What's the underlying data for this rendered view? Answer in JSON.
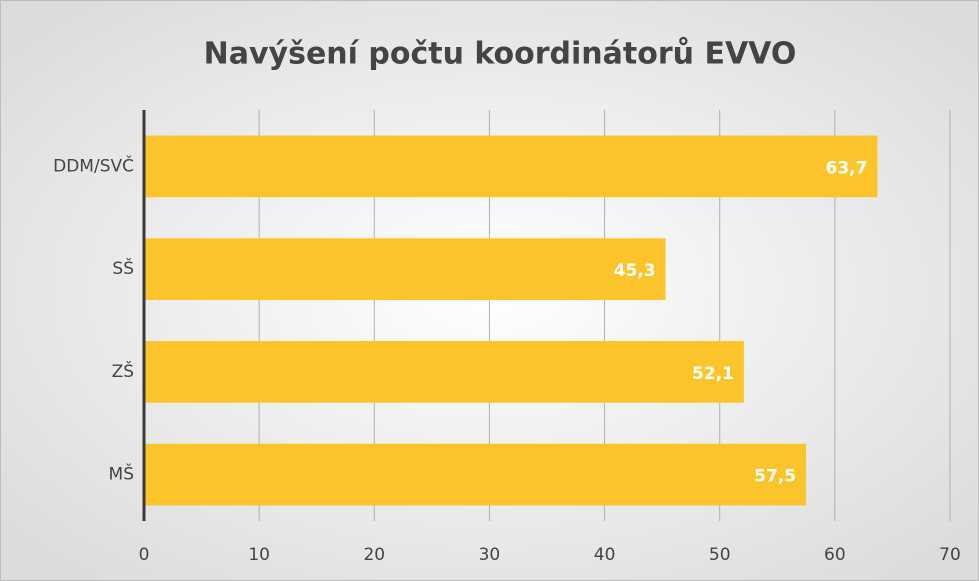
{
  "chart_data": {
    "type": "bar",
    "orientation": "horizontal",
    "title": "Navýšení počtu koordinátorů EVVO",
    "categories": [
      "DDM/SVČ",
      "SŠ",
      "ZŠ",
      "MŠ"
    ],
    "values": [
      63.7,
      45.3,
      52.1,
      57.5
    ],
    "value_labels": [
      "63,7",
      "45,3",
      "52,1",
      "57,5"
    ],
    "color": "#fcc42b",
    "xlim": [
      0,
      70
    ],
    "xticks": [
      0,
      10,
      20,
      30,
      40,
      50,
      60,
      70
    ],
    "grid": true
  }
}
